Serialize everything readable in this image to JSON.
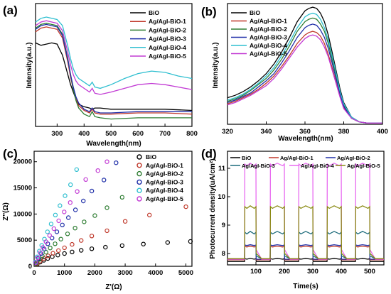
{
  "colors": {
    "s1": "#000000",
    "s2": "#c0392b",
    "s3": "#2e7d32",
    "s4": "#1f2fa8",
    "s5": "#2fbfd0",
    "s6": "#c23bd4",
    "s6b": "#e86bf0",
    "s5d": "#8a8a12"
  },
  "chart_data": [
    {
      "panel": "(a)",
      "type": "line",
      "xlabel": "Wavelength(nm)",
      "ylabel": "Intensity(a.u.)",
      "xlim": [
        220,
        800
      ],
      "ylim": [
        0,
        1
      ],
      "xticks": [
        "300",
        "400",
        "500",
        "600",
        "700",
        "800"
      ],
      "legend_position": "top-right",
      "series": [
        {
          "name": "BiO",
          "x": [
            220,
            240,
            260,
            280,
            300,
            320,
            340,
            350,
            360,
            370,
            380,
            400,
            420,
            430,
            440,
            460,
            500,
            600,
            700,
            800
          ],
          "values": [
            0.68,
            0.66,
            0.67,
            0.68,
            0.67,
            0.58,
            0.42,
            0.34,
            0.28,
            0.22,
            0.18,
            0.16,
            0.15,
            0.14,
            0.15,
            0.15,
            0.14,
            0.14,
            0.14,
            0.13
          ]
        },
        {
          "name": "Ag/AgI-BiO-1",
          "x": [
            220,
            240,
            260,
            280,
            300,
            320,
            340,
            350,
            360,
            370,
            380,
            400,
            420,
            430,
            440,
            460,
            500,
            600,
            700,
            800
          ],
          "values": [
            0.77,
            0.8,
            0.81,
            0.8,
            0.79,
            0.72,
            0.52,
            0.4,
            0.3,
            0.22,
            0.17,
            0.13,
            0.11,
            0.14,
            0.11,
            0.1,
            0.1,
            0.11,
            0.11,
            0.1
          ]
        },
        {
          "name": "Ag/AgI-BiO-2",
          "x": [
            220,
            240,
            260,
            280,
            300,
            320,
            340,
            350,
            360,
            370,
            380,
            400,
            420,
            430,
            440,
            460,
            500,
            600,
            700,
            800
          ],
          "values": [
            0.8,
            0.83,
            0.84,
            0.83,
            0.82,
            0.75,
            0.55,
            0.42,
            0.3,
            0.21,
            0.15,
            0.1,
            0.08,
            0.12,
            0.08,
            0.07,
            0.06,
            0.07,
            0.07,
            0.07
          ]
        },
        {
          "name": "Ag/AgI-BiO-3",
          "x": [
            220,
            240,
            260,
            280,
            300,
            320,
            340,
            350,
            360,
            370,
            380,
            400,
            420,
            430,
            440,
            460,
            500,
            600,
            700,
            800
          ],
          "values": [
            0.79,
            0.82,
            0.83,
            0.82,
            0.81,
            0.74,
            0.54,
            0.42,
            0.32,
            0.24,
            0.19,
            0.14,
            0.12,
            0.15,
            0.12,
            0.11,
            0.11,
            0.12,
            0.12,
            0.12
          ]
        },
        {
          "name": "Ag/AgI-BiO-4",
          "x": [
            220,
            240,
            260,
            280,
            300,
            320,
            340,
            350,
            360,
            370,
            380,
            400,
            420,
            430,
            440,
            460,
            500,
            550,
            600,
            650,
            700,
            750,
            800
          ],
          "values": [
            0.85,
            0.88,
            0.89,
            0.88,
            0.87,
            0.82,
            0.65,
            0.55,
            0.47,
            0.42,
            0.39,
            0.36,
            0.33,
            0.36,
            0.32,
            0.31,
            0.34,
            0.39,
            0.43,
            0.45,
            0.44,
            0.41,
            0.39
          ]
        },
        {
          "name": "Ag/AgI-BiO-5",
          "x": [
            220,
            240,
            260,
            280,
            300,
            320,
            340,
            350,
            360,
            370,
            380,
            400,
            420,
            430,
            440,
            460,
            500,
            550,
            600,
            650,
            700,
            750,
            800
          ],
          "values": [
            0.82,
            0.85,
            0.86,
            0.85,
            0.84,
            0.78,
            0.6,
            0.5,
            0.42,
            0.37,
            0.34,
            0.31,
            0.28,
            0.31,
            0.27,
            0.26,
            0.28,
            0.31,
            0.34,
            0.35,
            0.34,
            0.32,
            0.3
          ]
        }
      ]
    },
    {
      "panel": "(b)",
      "type": "line",
      "xlabel": "Wavelength(nm)",
      "ylabel": "Intensity(a.u.)",
      "xlim": [
        320,
        400
      ],
      "ylim": [
        0,
        1
      ],
      "xticks": [
        "320",
        "340",
        "360",
        "380",
        "400"
      ],
      "legend_position": "top-left",
      "series": [
        {
          "name": "BiO",
          "x": [
            320,
            324,
            328,
            332,
            336,
            340,
            344,
            348,
            352,
            356,
            360,
            362,
            364,
            366,
            368,
            370,
            372,
            374,
            376,
            378,
            380,
            384,
            388,
            392,
            396,
            400
          ],
          "values": [
            0.22,
            0.24,
            0.27,
            0.31,
            0.36,
            0.42,
            0.5,
            0.6,
            0.72,
            0.85,
            0.94,
            0.96,
            0.97,
            0.96,
            0.92,
            0.85,
            0.74,
            0.6,
            0.45,
            0.3,
            0.18,
            0.06,
            0.02,
            0.01,
            0.01,
            0.01
          ]
        },
        {
          "name": "Ag/AgI-BiO-1",
          "x": [
            320,
            324,
            328,
            332,
            336,
            340,
            344,
            348,
            352,
            356,
            360,
            362,
            364,
            366,
            368,
            370,
            372,
            374,
            376,
            378,
            380,
            384,
            388,
            392,
            396,
            400
          ],
          "values": [
            0.17,
            0.19,
            0.22,
            0.25,
            0.29,
            0.34,
            0.4,
            0.48,
            0.57,
            0.67,
            0.74,
            0.76,
            0.77,
            0.76,
            0.73,
            0.67,
            0.58,
            0.47,
            0.35,
            0.24,
            0.14,
            0.05,
            0.02,
            0.01,
            0.01,
            0.01
          ]
        },
        {
          "name": "Ag/AgI-BiO-2",
          "x": [
            320,
            324,
            328,
            332,
            336,
            340,
            344,
            348,
            352,
            356,
            360,
            362,
            364,
            366,
            368,
            370,
            372,
            374,
            376,
            378,
            380,
            384,
            388,
            392,
            396,
            400
          ],
          "values": [
            0.19,
            0.21,
            0.24,
            0.28,
            0.33,
            0.38,
            0.45,
            0.54,
            0.65,
            0.77,
            0.85,
            0.87,
            0.88,
            0.87,
            0.83,
            0.77,
            0.67,
            0.54,
            0.41,
            0.27,
            0.16,
            0.05,
            0.02,
            0.01,
            0.01,
            0.01
          ]
        },
        {
          "name": "Ag/AgI-BiO-3",
          "x": [
            320,
            324,
            328,
            332,
            336,
            340,
            344,
            348,
            352,
            356,
            360,
            362,
            364,
            366,
            368,
            370,
            372,
            374,
            376,
            378,
            380,
            384,
            388,
            392,
            396,
            400
          ],
          "values": [
            0.18,
            0.2,
            0.23,
            0.26,
            0.31,
            0.36,
            0.42,
            0.51,
            0.61,
            0.72,
            0.8,
            0.82,
            0.83,
            0.82,
            0.78,
            0.72,
            0.63,
            0.51,
            0.38,
            0.26,
            0.15,
            0.05,
            0.02,
            0.01,
            0.01,
            0.01
          ]
        },
        {
          "name": "Ag/AgI-BiO-4",
          "x": [
            320,
            324,
            328,
            332,
            336,
            340,
            344,
            348,
            352,
            356,
            360,
            362,
            364,
            366,
            368,
            370,
            372,
            374,
            376,
            378,
            380,
            384,
            388,
            392,
            396,
            400
          ],
          "values": [
            0.2,
            0.22,
            0.25,
            0.29,
            0.34,
            0.4,
            0.47,
            0.57,
            0.68,
            0.8,
            0.89,
            0.91,
            0.92,
            0.91,
            0.87,
            0.8,
            0.7,
            0.57,
            0.43,
            0.28,
            0.17,
            0.06,
            0.02,
            0.01,
            0.01,
            0.01
          ]
        },
        {
          "name": "Ag/AgI-BiO-5",
          "x": [
            320,
            324,
            328,
            332,
            336,
            340,
            344,
            348,
            352,
            356,
            360,
            362,
            364,
            366,
            368,
            370,
            372,
            374,
            376,
            378,
            380,
            384,
            388,
            392,
            396,
            400
          ],
          "values": [
            0.16,
            0.18,
            0.21,
            0.24,
            0.28,
            0.32,
            0.38,
            0.46,
            0.55,
            0.64,
            0.71,
            0.73,
            0.74,
            0.73,
            0.7,
            0.64,
            0.56,
            0.45,
            0.34,
            0.23,
            0.13,
            0.05,
            0.02,
            0.01,
            0.01,
            0.01
          ]
        }
      ]
    },
    {
      "panel": "(c)",
      "type": "scatter",
      "xlabel": "Z'(Ω)",
      "ylabel": "Z''(Ω)",
      "xlim": [
        0,
        5200
      ],
      "ylim": [
        0,
        22000
      ],
      "xticks": [
        "0",
        "1000",
        "2000",
        "3000",
        "4000",
        "5000"
      ],
      "yticks": [
        "0",
        "5000",
        "10000",
        "15000",
        "20000"
      ],
      "legend_position": "top-right",
      "series": [
        {
          "name": "BiO",
          "x": [
            100,
            200,
            320,
            450,
            600,
            780,
            1000,
            1250,
            1550,
            1900,
            2350,
            2900,
            3600,
            4400,
            5150
          ],
          "values": [
            400,
            800,
            1150,
            1500,
            1850,
            2150,
            2450,
            2750,
            3050,
            3350,
            3650,
            3950,
            4250,
            4550,
            4750
          ]
        },
        {
          "name": "Ag/AgI-BiO-1",
          "x": [
            100,
            200,
            320,
            460,
            620,
            800,
            1000,
            1250,
            1550,
            1900,
            2400,
            3000,
            3800,
            5000
          ],
          "values": [
            500,
            1000,
            1500,
            2000,
            2500,
            3000,
            3550,
            4200,
            4950,
            5800,
            6800,
            8600,
            9800,
            11400
          ]
        },
        {
          "name": "Ag/AgI-BiO-2",
          "x": [
            80,
            170,
            270,
            390,
            530,
            690,
            880,
            1100,
            1350,
            1650,
            2000,
            2400,
            2900
          ],
          "values": [
            600,
            1300,
            2000,
            2700,
            3500,
            4300,
            5200,
            6200,
            7300,
            8500,
            9700,
            11200,
            13200
          ]
        },
        {
          "name": "Ag/AgI-BiO-3",
          "x": [
            60,
            140,
            230,
            330,
            450,
            590,
            750,
            930,
            1130,
            1360,
            1620,
            1900,
            2300,
            2700
          ],
          "values": [
            700,
            1500,
            2400,
            3300,
            4300,
            5400,
            6600,
            7900,
            9300,
            10800,
            12500,
            14400,
            16500,
            19800
          ]
        },
        {
          "name": "Ag/AgI-BiO-4",
          "x": [
            40,
            100,
            170,
            250,
            340,
            440,
            560,
            700,
            850,
            1020,
            1200,
            1400,
            1650
          ],
          "values": [
            800,
            1800,
            2900,
            4000,
            5200,
            6600,
            8100,
            9800,
            11600,
            13500,
            15600,
            18500,
            22000
          ]
        },
        {
          "name": "Ag/AgI-BiO-5",
          "x": [
            50,
            120,
            200,
            290,
            390,
            510,
            650,
            810,
            990,
            1190,
            1420,
            1700,
            2100,
            2400
          ],
          "values": [
            700,
            1600,
            2600,
            3600,
            4700,
            5900,
            7200,
            8700,
            10400,
            12200,
            14300,
            16600,
            18300,
            20000
          ]
        }
      ]
    },
    {
      "panel": "(d)",
      "type": "line",
      "xlabel": "Time(s)",
      "ylabel": "Photocurrent density(uA/cm²)",
      "xlim": [
        0,
        550
      ],
      "ylim": [
        7.6,
        11.6
      ],
      "xticks": [
        "100",
        "200",
        "300",
        "400",
        "500"
      ],
      "yticks": [
        "8",
        "9",
        "10",
        "11"
      ],
      "legend_position": "top",
      "on_intervals": [
        [
          60,
          100
        ],
        [
          150,
          200
        ],
        [
          250,
          300
        ],
        [
          350,
          400
        ],
        [
          450,
          500
        ]
      ],
      "series": [
        {
          "name": "BiO",
          "dark": 7.72,
          "light": 7.82
        },
        {
          "name": "Ag/AgI-BiO-1",
          "dark": 7.78,
          "light": 8.25
        },
        {
          "name": "Ag/AgI-BiO-2",
          "dark": 7.8,
          "light": 8.3
        },
        {
          "name": "Ag/AgI-BiO-3",
          "dark": 7.82,
          "light": 8.75
        },
        {
          "name": "Ag/AgI-BiO-4",
          "dark": 7.8,
          "light": 11.15
        },
        {
          "name": "Ag/AgI-BiO-5",
          "dark": 7.82,
          "light": 9.65
        }
      ]
    }
  ],
  "labels": {
    "a": "(a)",
    "b": "(b)",
    "c": "(c)",
    "d": "(d)"
  }
}
